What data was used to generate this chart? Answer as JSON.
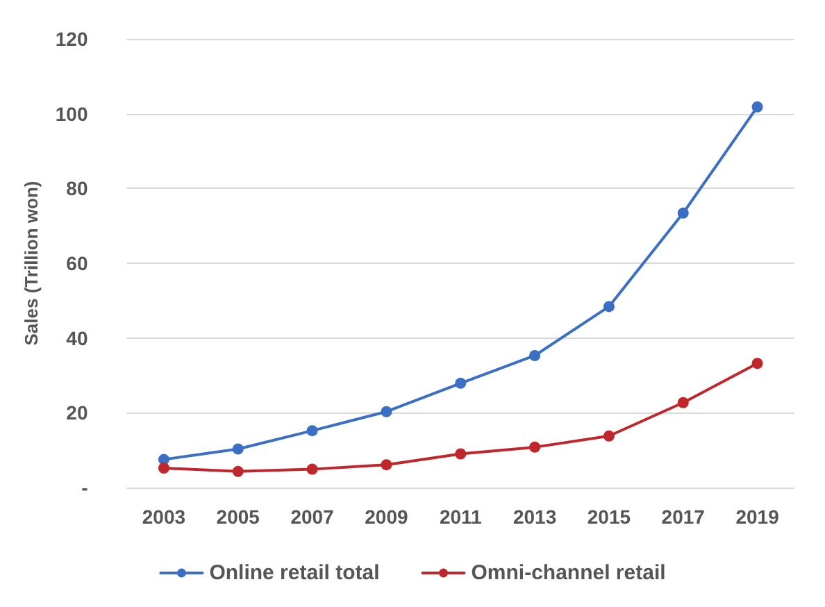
{
  "chart_data": {
    "type": "line",
    "ylabel": "Sales (Trillion won)",
    "categories": [
      "2003",
      "2005",
      "2007",
      "2009",
      "2011",
      "2013",
      "2015",
      "2017",
      "2019"
    ],
    "series": [
      {
        "name": "Online retail total",
        "color": "#3a6fc4",
        "values": [
          7.5,
          10.3,
          15.2,
          20.3,
          27.9,
          35.3,
          48.4,
          73.4,
          101.8
        ]
      },
      {
        "name": "Omni-channel retail",
        "color": "#c0272d",
        "values": [
          5.2,
          4.3,
          4.9,
          6.1,
          9.0,
          10.8,
          13.8,
          22.7,
          33.2
        ]
      }
    ],
    "ylim": [
      0,
      120
    ],
    "yticks": [
      {
        "value": 0,
        "label": "-"
      },
      20,
      40,
      60,
      80,
      100,
      120
    ],
    "grid": "y",
    "legend": "bottom",
    "marker": "circle",
    "line_style": "solid"
  }
}
